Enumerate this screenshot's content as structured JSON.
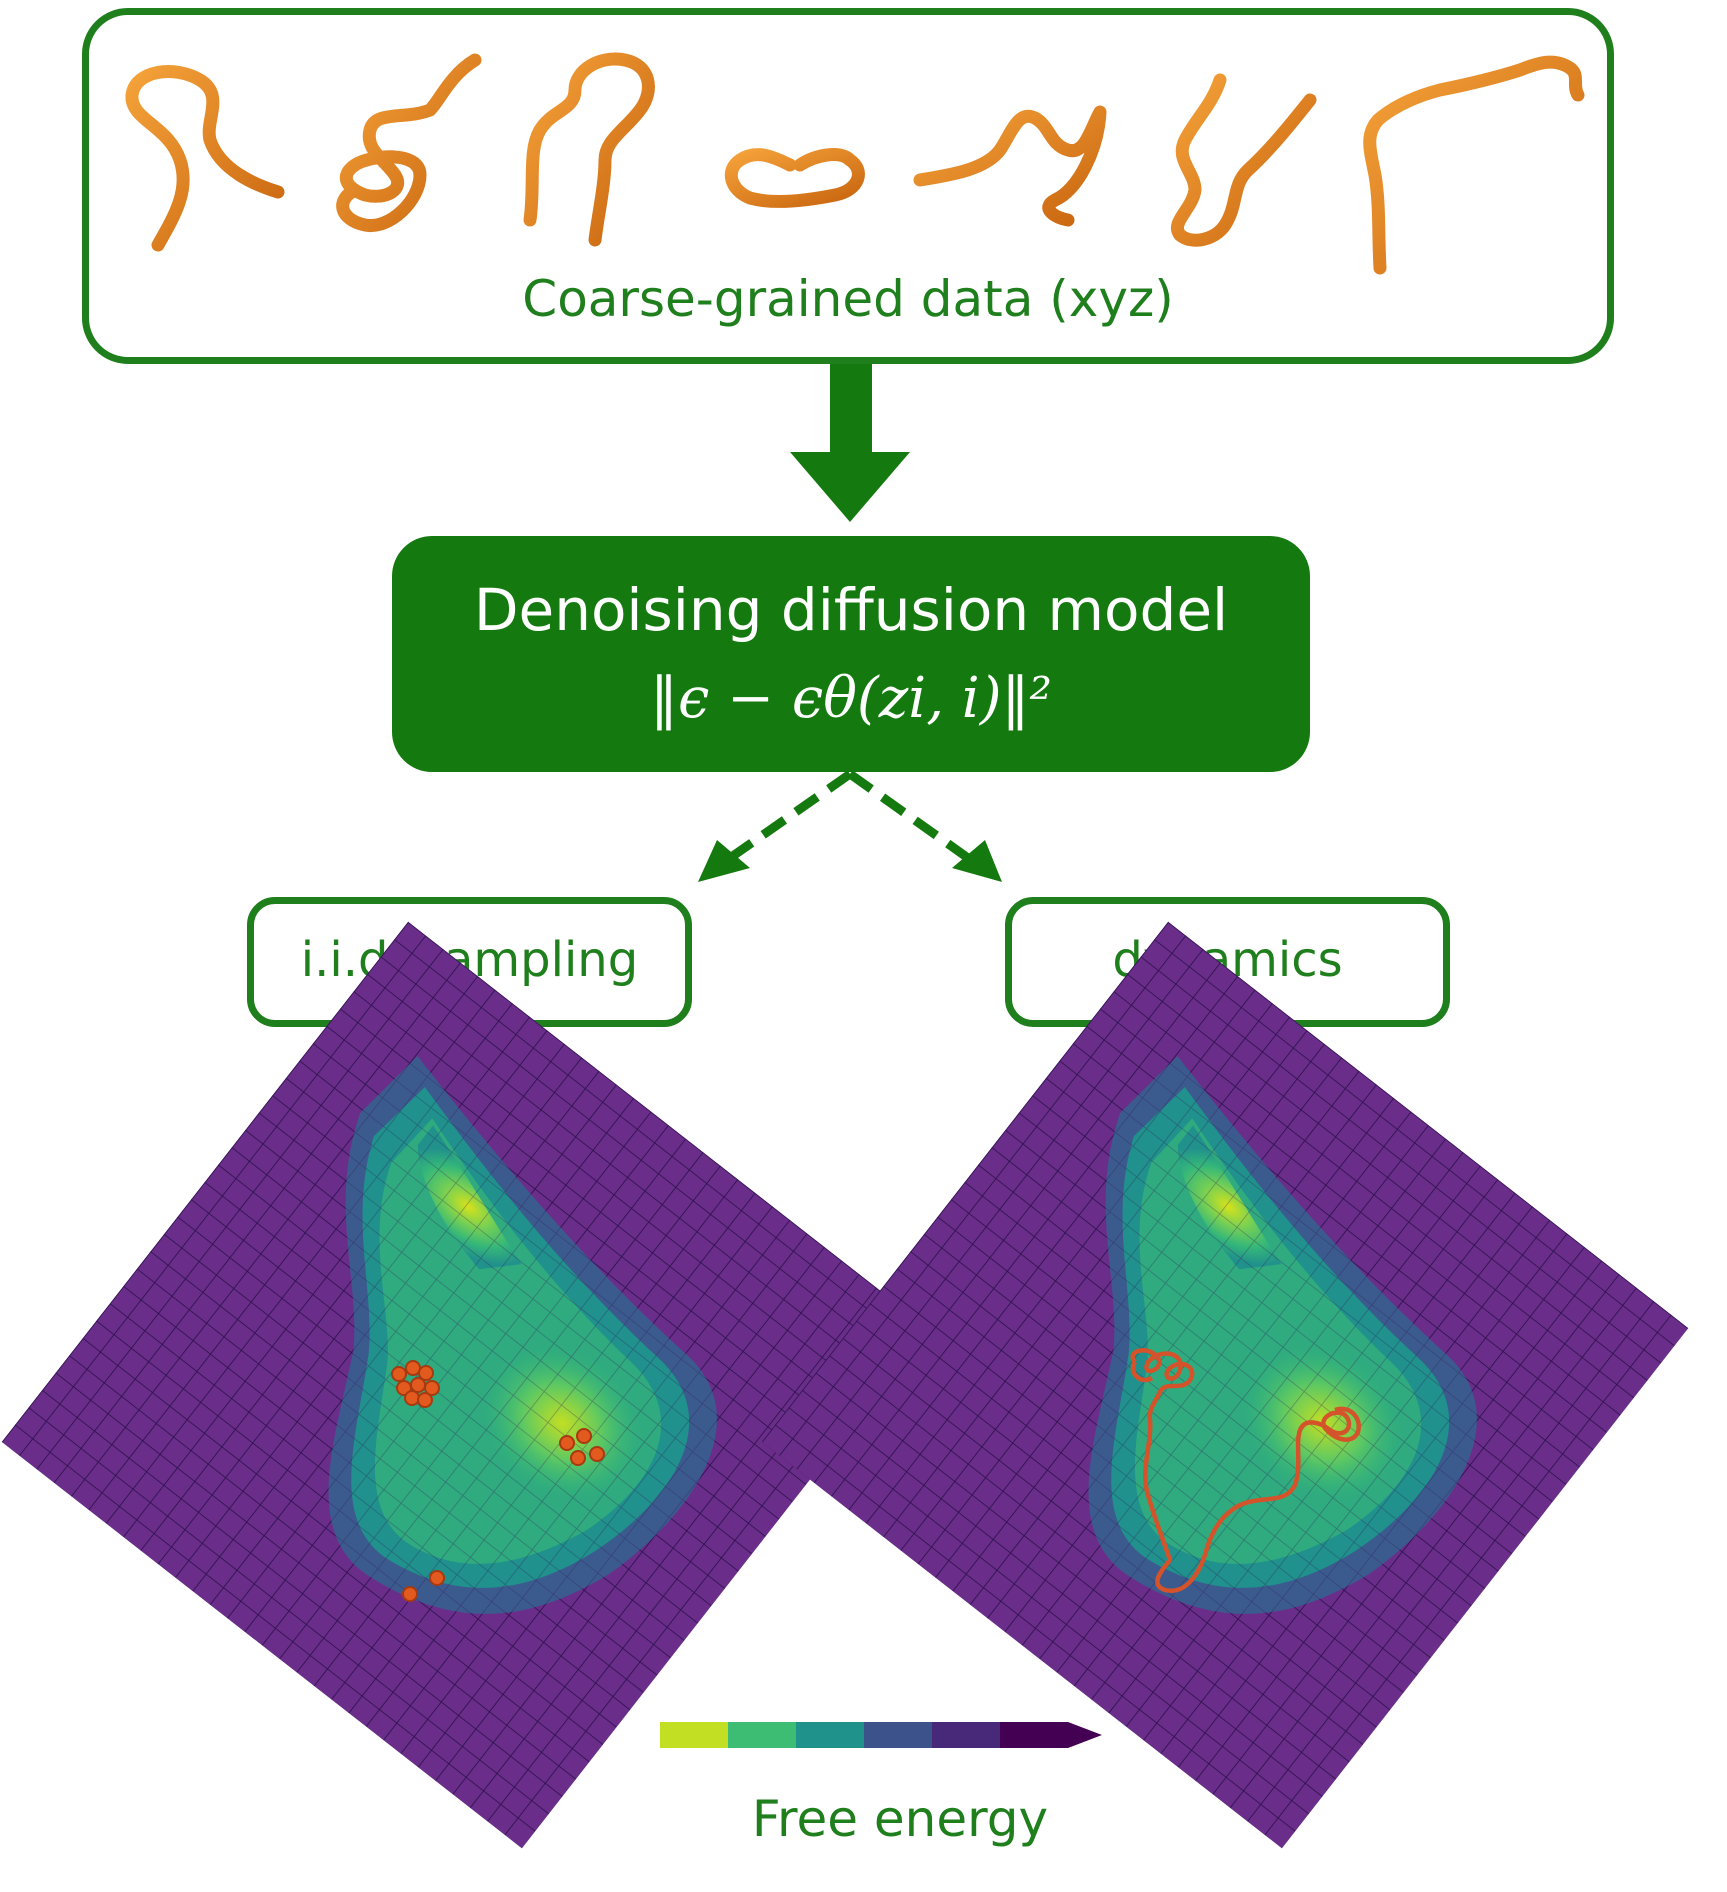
{
  "top_panel": {
    "caption": "Coarse-grained data (xyz)",
    "structure_count": 7
  },
  "model": {
    "title": "Denoising diffusion model",
    "loss": "‖ϵ − ϵθ(zi, i)‖²"
  },
  "branches": {
    "left": "i.i.d. sampling",
    "right": "dynamics"
  },
  "colorbar": {
    "label": "Free energy",
    "colors": [
      "#c2df23",
      "#3dbc74",
      "#20928c",
      "#3b528b",
      "#482878",
      "#440154"
    ]
  },
  "colors": {
    "green": "#1f7f1c",
    "model_fill": "#147a0f",
    "chain": "#e8861a",
    "marker": "#d4532a"
  }
}
